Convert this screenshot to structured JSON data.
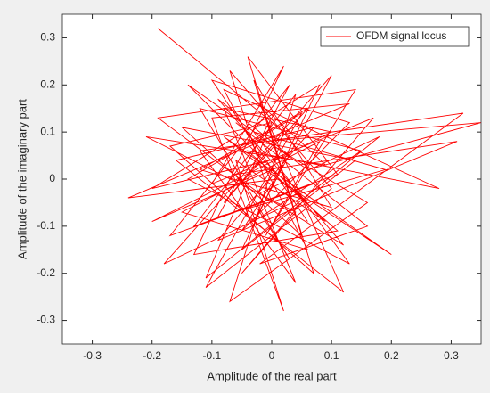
{
  "chart_data": {
    "type": "line",
    "xlabel": "Amplitude of the real part",
    "ylabel": "Amplitude of the imaginary part",
    "xlim": [
      -0.35,
      0.35
    ],
    "ylim": [
      -0.35,
      0.35
    ],
    "xticks": [
      -0.3,
      -0.2,
      -0.1,
      0,
      0.1,
      0.2,
      0.3
    ],
    "yticks": [
      -0.3,
      -0.2,
      -0.1,
      0,
      0.1,
      0.2,
      0.3
    ],
    "grid": false,
    "legend": "upper right",
    "x": [
      -0.19,
      0.02,
      -0.08,
      0.06,
      -0.12,
      0.1,
      -0.03,
      0.05,
      -0.15,
      0.14,
      -0.05,
      0.08,
      -0.2,
      0.03,
      -0.09,
      0.12,
      -0.02,
      0.18,
      -0.11,
      0.0,
      -0.17,
      0.07,
      -0.04,
      0.11,
      -0.13,
      0.04,
      -0.07,
      0.16,
      -0.01,
      0.35,
      0.06,
      -0.14,
      0.09,
      -0.06,
      0.02,
      -0.1,
      0.13,
      -0.24,
      0.01,
      0.2,
      -0.08,
      0.05,
      -0.18,
      0.1,
      -0.03,
      0.15,
      -0.12,
      0.03,
      -0.06,
      0.31,
      -0.09,
      0.07,
      -0.16,
      0.12,
      -0.02,
      0.09,
      -0.21,
      0.04,
      -0.05,
      0.17,
      -0.1,
      0.02,
      -0.13,
      0.11,
      -0.04,
      0.28,
      -0.08,
      0.06,
      -0.15,
      0.08,
      -0.01,
      0.14,
      -0.19,
      0.0,
      -0.07,
      0.1,
      -0.11,
      0.05,
      -0.14,
      0.13,
      -0.03,
      0.19,
      -0.09,
      0.03,
      -0.17,
      0.07,
      -0.06,
      0.16,
      -0.02,
      0.32,
      -0.12,
      0.04,
      -0.08,
      0.1,
      -0.2,
      0.02,
      -0.05,
      0.13,
      -0.1,
      0.06
    ],
    "series": [
      {
        "name": "OFDM signal locus",
        "color": "#ff0000",
        "values": [
          0.32,
          0.1,
          -0.05,
          0.15,
          0.02,
          -0.06,
          0.21,
          -0.12,
          0.11,
          0.04,
          -0.15,
          0.2,
          -0.02,
          0.05,
          0.17,
          -0.14,
          -0.03,
          0.09,
          -0.21,
          0.12,
          0.07,
          -0.2,
          0.26,
          0.01,
          -0.1,
          0.18,
          -0.26,
          -0.05,
          0.08,
          0.12,
          0.02,
          0.2,
          -0.09,
          0.04,
          -0.28,
          0.13,
          0.16,
          -0.04,
          0.0,
          -0.16,
          0.09,
          -0.04,
          -0.18,
          0.22,
          -0.09,
          0.06,
          0.15,
          -0.17,
          0.01,
          0.08,
          -0.13,
          0.11,
          0.04,
          -0.24,
          0.16,
          0.03,
          0.09,
          -0.07,
          -0.2,
          0.13,
          -0.01,
          0.24,
          -0.16,
          -0.11,
          0.06,
          -0.02,
          0.19,
          -0.15,
          -0.07,
          0.08,
          -0.12,
          0.19,
          0.13,
          -0.05,
          0.23,
          -0.02,
          -0.23,
          0.14,
          0.0,
          -0.18,
          0.1,
          0.02,
          -0.08,
          0.2,
          -0.12,
          -0.01,
          0.12,
          -0.1,
          -0.18,
          0.14,
          0.06,
          -0.22,
          0.15,
          0.1,
          -0.09,
          0.03,
          -0.11,
          0.12,
          0.21,
          -0.09
        ]
      }
    ]
  }
}
